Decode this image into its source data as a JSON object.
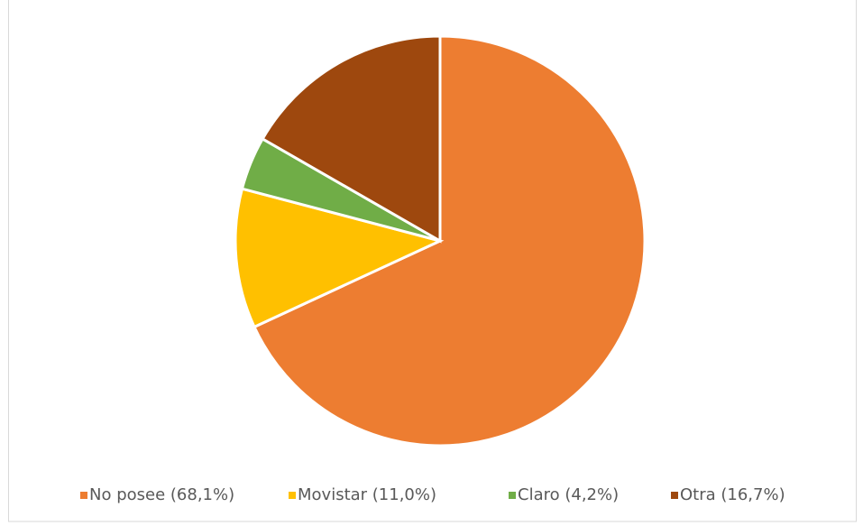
{
  "chart_data": {
    "type": "pie",
    "categories": [
      "No posee (68,1%)",
      "Movistar (11,0%)",
      "Claro (4,2%)",
      "Otra (16,7%)"
    ],
    "values": [
      68.1,
      11.0,
      4.2,
      16.7
    ],
    "colors": [
      "#ED7D31",
      "#FFC000",
      "#70AD47",
      "#9E480E"
    ],
    "legend": "bottom"
  }
}
